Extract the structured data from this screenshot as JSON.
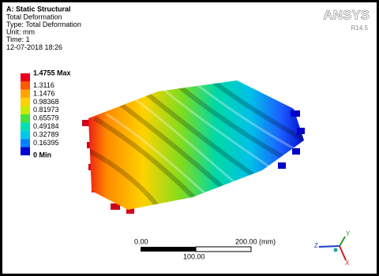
{
  "header": {
    "title": "A: Static Structural",
    "lines": [
      "Total Deformation",
      "Type: Total Deformation",
      "Unit: mm",
      "Time: 1",
      "12-07-2018 18:26"
    ]
  },
  "logo": {
    "name": "ANSYS",
    "version": "R14.5"
  },
  "legend": {
    "labels": [
      "1.4755 Max",
      "1.3116",
      "1.1476",
      "0.98368",
      "0.81973",
      "0.65579",
      "0.49184",
      "0.32789",
      "0.16395",
      "0 Min"
    ],
    "colors": [
      "#e8001a",
      "#ff5a00",
      "#ffa500",
      "#ffd200",
      "#c8ec00",
      "#48e040",
      "#00e0b0",
      "#00c8e8",
      "#0080ff",
      "#0000d0"
    ]
  },
  "scale_bar": {
    "start": "0.00",
    "end": "200.00 (mm)",
    "middle": "100.00"
  },
  "triad": {
    "x": "X",
    "y": "Y",
    "z": "Z"
  }
}
